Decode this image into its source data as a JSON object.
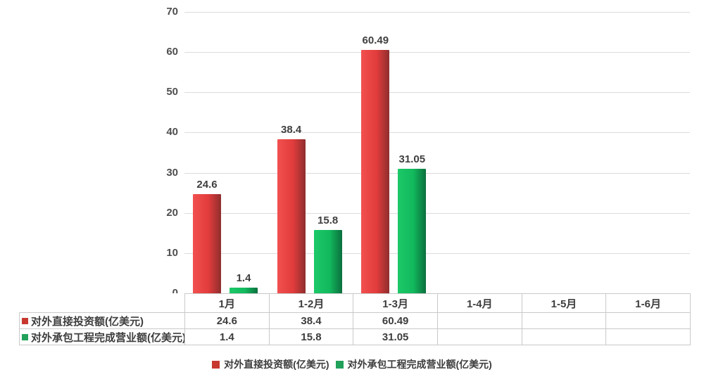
{
  "chart_data": {
    "type": "bar",
    "title": "",
    "categories": [
      "1月",
      "1-2月",
      "1-3月",
      "1-4月",
      "1-5月",
      "1-6月"
    ],
    "series": [
      {
        "name": "对外直接投资额(亿美元)",
        "values": [
          24.6,
          38.4,
          60.49,
          null,
          null,
          null
        ],
        "color": "#c7382f",
        "bar_gradient": [
          "#f25050",
          "#e23c3c",
          "#8f2e2e"
        ]
      },
      {
        "name": "对外承包工程完成营业额(亿美元)",
        "values": [
          1.4,
          15.8,
          31.05,
          null,
          null,
          null
        ],
        "color": "#21a15a",
        "bar_gradient": [
          "#1cc968",
          "#12b95d",
          "#0b6f3e"
        ]
      }
    ],
    "ylim": [
      0,
      70
    ],
    "yticks": [
      0,
      10,
      20,
      30,
      40,
      50,
      60,
      70
    ],
    "xlabel": "",
    "ylabel": "",
    "grid": "horizontal",
    "legend_position": "bottom",
    "show_data_table": true,
    "value_labels": true
  }
}
